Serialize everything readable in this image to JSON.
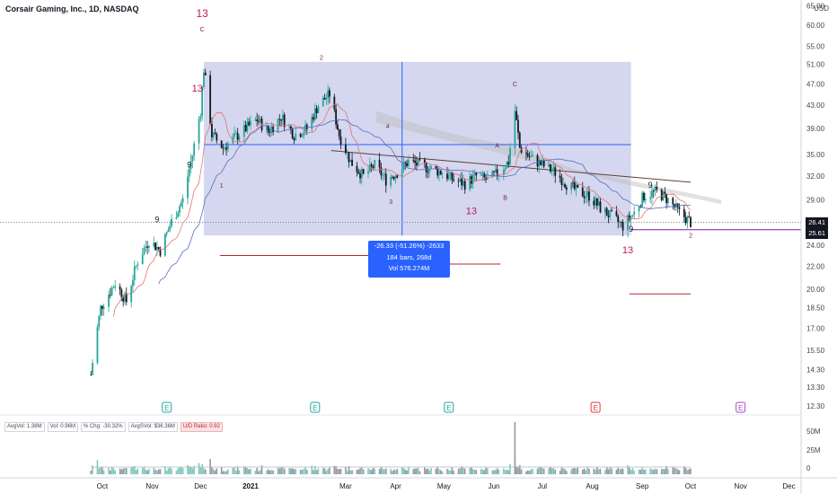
{
  "header": {
    "symbol": "Corsair Gaming, Inc., 1D, NASDAQ",
    "currency": "USD"
  },
  "measure": {
    "line1": "-26.33 (-51.26%) -2633",
    "line2": "184 bars, 268d",
    "line3": "Vol 576.274M"
  },
  "volume_legend": [
    "AvgVol: 1.38M",
    "Vol: 0.96M",
    "% Chg: -30.32%",
    "AvgSVol: $36.36M",
    "U/D Ratio: 0.92"
  ],
  "colors": {
    "up": "#26a69a",
    "down": "#131722",
    "price_tag": "#131722",
    "target_tag": "#131722",
    "box": "#c5cae9",
    "measure": "#2962ff",
    "cloud": "#bdbdbd",
    "td": "#c2185b"
  },
  "chart_data": {
    "type": "candlestick",
    "title": "Corsair Gaming, Inc., 1D, NASDAQ",
    "y_axis": {
      "scale": "log",
      "ticks": [
        12.3,
        13.3,
        14.3,
        15.5,
        17.0,
        18.5,
        20.0,
        22.0,
        24.0,
        26.0,
        29.0,
        32.0,
        35.0,
        39.0,
        43.0,
        47.0,
        51.0,
        55.0,
        60.0,
        65.0
      ]
    },
    "x_axis": {
      "ticks": [
        "Oct",
        "Nov",
        "Dec",
        "2021",
        "Mar",
        "Apr",
        "May",
        "Jun",
        "Jul",
        "Aug",
        "Sep",
        "Oct",
        "Nov",
        "Dec"
      ]
    },
    "price_tags": {
      "last": 26.41,
      "target": 25.61
    },
    "close_path": [
      [
        "2020-09-24",
        14.0
      ],
      [
        "2020-09-30",
        18.5
      ],
      [
        "2020-10-09",
        20.5
      ],
      [
        "2020-10-16",
        19.0
      ],
      [
        "2020-10-23",
        22.5
      ],
      [
        "2020-10-30",
        24.5
      ],
      [
        "2020-11-06",
        23.5
      ],
      [
        "2020-11-13",
        26.5
      ],
      [
        "2020-11-20",
        29.0
      ],
      [
        "2020-11-26",
        35.0
      ],
      [
        "2020-12-01",
        42.0
      ],
      [
        "2020-12-03",
        50.0
      ],
      [
        "2020-12-08",
        38.0
      ],
      [
        "2020-12-15",
        36.0
      ],
      [
        "2020-12-22",
        37.5
      ],
      [
        "2021-01-05",
        40.5
      ],
      [
        "2021-01-12",
        38.5
      ],
      [
        "2021-01-20",
        41.0
      ],
      [
        "2021-01-28",
        38.0
      ],
      [
        "2021-02-05",
        39.0
      ],
      [
        "2021-02-12",
        43.0
      ],
      [
        "2021-02-19",
        45.0
      ],
      [
        "2021-02-25",
        38.0
      ],
      [
        "2021-03-04",
        34.0
      ],
      [
        "2021-03-12",
        32.0
      ],
      [
        "2021-03-19",
        33.5
      ],
      [
        "2021-03-26",
        31.5
      ],
      [
        "2021-04-02",
        32.5
      ],
      [
        "2021-04-09",
        34.0
      ],
      [
        "2021-04-16",
        33.5
      ],
      [
        "2021-04-23",
        33.0
      ],
      [
        "2021-04-30",
        32.5
      ],
      [
        "2021-05-07",
        31.5
      ],
      [
        "2021-05-14",
        31.0
      ],
      [
        "2021-05-21",
        32.0
      ],
      [
        "2021-05-28",
        31.5
      ],
      [
        "2021-06-04",
        32.5
      ],
      [
        "2021-06-10",
        34.0
      ],
      [
        "2021-06-14",
        42.0
      ],
      [
        "2021-06-17",
        36.0
      ],
      [
        "2021-06-24",
        34.5
      ],
      [
        "2021-07-01",
        33.5
      ],
      [
        "2021-07-09",
        32.5
      ],
      [
        "2021-07-16",
        31.0
      ],
      [
        "2021-07-23",
        30.0
      ],
      [
        "2021-07-30",
        29.5
      ],
      [
        "2021-08-06",
        28.0
      ],
      [
        "2021-08-13",
        27.0
      ],
      [
        "2021-08-20",
        26.0
      ],
      [
        "2021-08-27",
        27.5
      ],
      [
        "2021-09-02",
        29.5
      ],
      [
        "2021-09-10",
        30.0
      ],
      [
        "2021-09-17",
        29.0
      ],
      [
        "2021-09-24",
        27.5
      ],
      [
        "2021-10-01",
        26.41
      ]
    ],
    "labels": [
      {
        "text": "13",
        "date": "2020-12-02",
        "price": 62.0,
        "size": 12
      },
      {
        "text": "C",
        "date": "2020-12-02",
        "price": 58.5,
        "size": 7
      },
      {
        "text": "13",
        "date": "2020-11-29",
        "price": 45.5,
        "size": 11
      },
      {
        "text": "2",
        "date": "2021-02-14",
        "price": 52.0,
        "size": 7
      },
      {
        "text": "4",
        "date": "2021-03-27",
        "price": 39.0,
        "size": 7
      },
      {
        "text": "1",
        "date": "2020-12-14",
        "price": 30.5,
        "size": 7
      },
      {
        "text": "3",
        "date": "2021-03-29",
        "price": 28.5,
        "size": 7
      },
      {
        "text": "13",
        "date": "2021-05-18",
        "price": 27.3,
        "size": 11
      },
      {
        "text": "A",
        "date": "2021-06-03",
        "price": 36.0,
        "size": 7
      },
      {
        "text": "B",
        "date": "2021-06-08",
        "price": 29.0,
        "size": 7
      },
      {
        "text": "C",
        "date": "2021-06-14",
        "price": 46.5,
        "size": 7
      },
      {
        "text": "13",
        "date": "2021-08-23",
        "price": 23.2,
        "size": 11
      },
      {
        "text": "9",
        "date": "2021-08-25",
        "price": 25.4,
        "size": 9
      },
      {
        "text": "9",
        "date": "2021-09-06",
        "price": 30.5,
        "size": 9
      },
      {
        "text": "9",
        "date": "2020-11-04",
        "price": 26.4,
        "size": 9
      },
      {
        "text": "9",
        "date": "2020-11-24",
        "price": 33.2,
        "size": 9
      },
      {
        "text": "2",
        "date": "2021-10-01",
        "price": 24.8,
        "size": 7
      }
    ]
  }
}
